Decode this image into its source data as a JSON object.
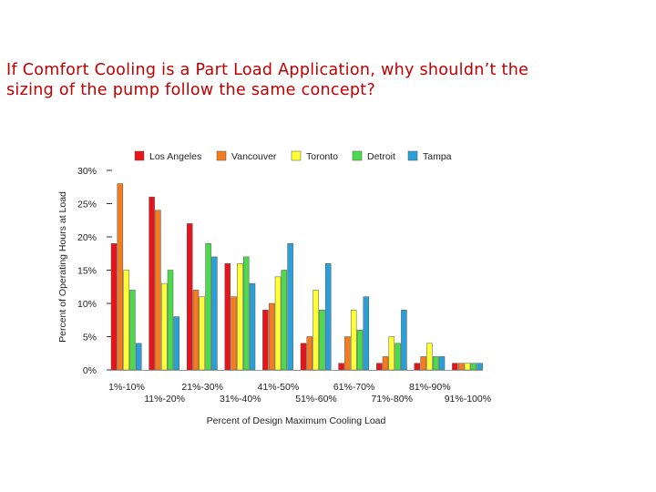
{
  "slide": {
    "title_line1": "If Comfort Cooling is a Part Load Application, why shouldn’t the",
    "title_line2": "sizing of the pump follow the same concept?"
  },
  "chart_data": {
    "type": "bar",
    "title": "",
    "xlabel": "Percent of Design Maximum Cooling Load",
    "ylabel": "Percent of Operating Hours at Load",
    "ylim": [
      0,
      30
    ],
    "yticks": [
      "0%",
      "5%",
      "10%",
      "15%",
      "20%",
      "25%",
      "30%"
    ],
    "legend_position": "top",
    "categories": [
      "1%-10%",
      "11%-20%",
      "21%-30%",
      "31%-40%",
      "41%-50%",
      "51%-60%",
      "61%-70%",
      "71%-80%",
      "81%-90%",
      "91%-100%"
    ],
    "series": [
      {
        "name": "Los Angeles",
        "color": "#e8141b",
        "values": [
          19,
          26,
          22,
          16,
          9,
          4,
          1,
          1,
          1,
          1
        ]
      },
      {
        "name": "Vancouver",
        "color": "#f47b20",
        "values": [
          28,
          24,
          12,
          11,
          10,
          5,
          5,
          2,
          2,
          1
        ]
      },
      {
        "name": "Toronto",
        "color": "#ffff33",
        "values": [
          15,
          13,
          11,
          16,
          14,
          12,
          9,
          5,
          4,
          1
        ]
      },
      {
        "name": "Detroit",
        "color": "#4cd94c",
        "values": [
          12,
          15,
          19,
          17,
          15,
          9,
          6,
          4,
          2,
          1
        ]
      },
      {
        "name": "Tampa",
        "color": "#2a9fd8",
        "values": [
          4,
          8,
          17,
          13,
          19,
          16,
          11,
          9,
          2,
          1
        ]
      }
    ]
  }
}
